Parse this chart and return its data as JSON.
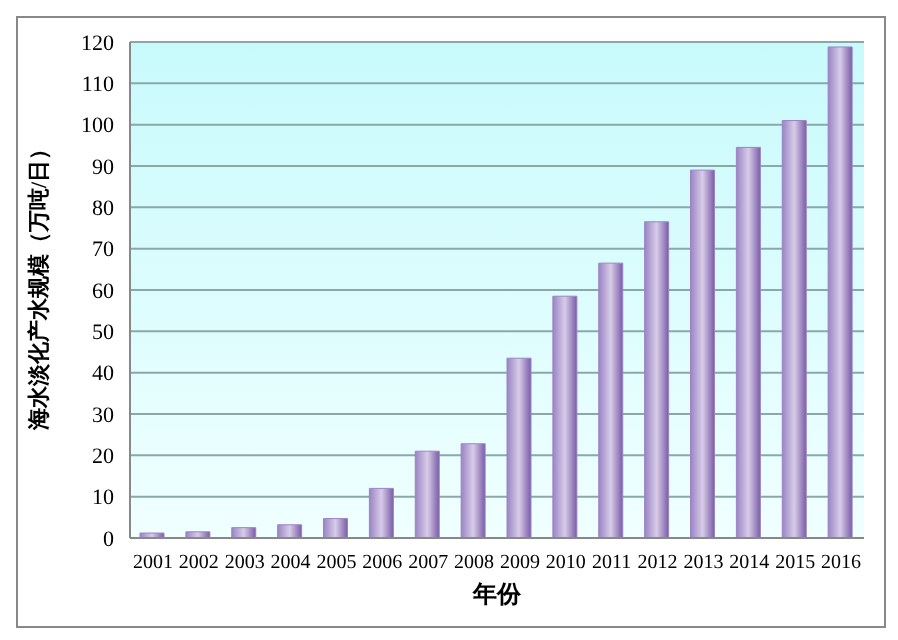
{
  "chart_data": {
    "type": "bar",
    "xlabel": "年份",
    "ylabel": "海水淡化产水规模（万吨/日）",
    "categories": [
      "2001",
      "2002",
      "2003",
      "2004",
      "2005",
      "2006",
      "2007",
      "2008",
      "2009",
      "2010",
      "2011",
      "2012",
      "2013",
      "2014",
      "2015",
      "2016"
    ],
    "values": [
      1.2,
      1.5,
      2.5,
      3.2,
      4.7,
      12,
      21,
      22.8,
      43.5,
      58.5,
      66.5,
      76.5,
      89,
      94.5,
      101,
      118.8
    ],
    "color": "#9a84c4",
    "ylim": [
      0,
      120
    ],
    "yticks": [
      0,
      10,
      20,
      30,
      40,
      50,
      60,
      70,
      80,
      90,
      100,
      110,
      120
    ],
    "grid": "y"
  }
}
